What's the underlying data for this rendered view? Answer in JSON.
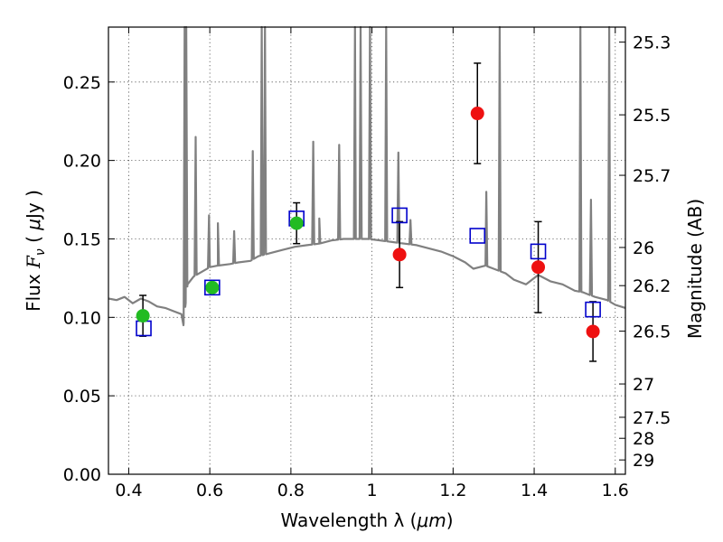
{
  "chart_data": {
    "type": "scatter",
    "xlabel_text": "Wavelength  λ (",
    "xlabel_unit": "μm",
    "xlabel_close": ")",
    "ylabel_text": "Flux  ",
    "ylabel_symbol": "F",
    "ylabel_subscript": "ν",
    "ylabel_unit_open": "  ( ",
    "ylabel_unit_mu": "μ",
    "ylabel_unit_rest": "Jy )",
    "y2label": "Magnitude (AB)",
    "xlim": [
      0.35,
      1.625
    ],
    "ylim": [
      0.0,
      0.285
    ],
    "grid": true,
    "x_ticks": [
      {
        "v": 0.4,
        "label": "0.4"
      },
      {
        "v": 0.6,
        "label": "0.6"
      },
      {
        "v": 0.8,
        "label": "0.8"
      },
      {
        "v": 1.0,
        "label": "1"
      },
      {
        "v": 1.2,
        "label": "1.2"
      },
      {
        "v": 1.4,
        "label": "1.4"
      },
      {
        "v": 1.6,
        "label": "1.6"
      }
    ],
    "y_ticks": [
      {
        "v": 0.0,
        "label": "0.00"
      },
      {
        "v": 0.05,
        "label": "0.05"
      },
      {
        "v": 0.1,
        "label": "0.10"
      },
      {
        "v": 0.15,
        "label": "0.15"
      },
      {
        "v": 0.2,
        "label": "0.20"
      },
      {
        "v": 0.25,
        "label": "0.25"
      }
    ],
    "mag_ticks": [
      {
        "label": "25.3",
        "v": 25.3
      },
      {
        "label": "25.5",
        "v": 25.5
      },
      {
        "label": "25.7",
        "v": 25.7
      },
      {
        "label": "26",
        "v": 26.0
      },
      {
        "label": "26.2",
        "v": 26.2
      },
      {
        "label": "26.5",
        "v": 26.5
      },
      {
        "label": "27",
        "v": 27.0
      },
      {
        "label": "27.5",
        "v": 27.5
      },
      {
        "label": "28",
        "v": 28.0
      },
      {
        "label": "29",
        "v": 29.0
      }
    ],
    "colors": {
      "sed": "#808080",
      "green": "#22bb22",
      "red": "#ee1111",
      "model": "#0000cc",
      "errorbar": "#000000"
    },
    "sed_continuum": [
      [
        0.35,
        0.112
      ],
      [
        0.37,
        0.111
      ],
      [
        0.39,
        0.113
      ],
      [
        0.41,
        0.109
      ],
      [
        0.43,
        0.112
      ],
      [
        0.45,
        0.11
      ],
      [
        0.47,
        0.107
      ],
      [
        0.49,
        0.106
      ],
      [
        0.51,
        0.104
      ],
      [
        0.53,
        0.102
      ],
      [
        0.535,
        0.095
      ],
      [
        0.545,
        0.121
      ],
      [
        0.56,
        0.126
      ],
      [
        0.58,
        0.129
      ],
      [
        0.6,
        0.132
      ],
      [
        0.62,
        0.133
      ],
      [
        0.65,
        0.134
      ],
      [
        0.67,
        0.135
      ],
      [
        0.7,
        0.136
      ],
      [
        0.72,
        0.139
      ],
      [
        0.75,
        0.141
      ],
      [
        0.78,
        0.143
      ],
      [
        0.81,
        0.145
      ],
      [
        0.84,
        0.146
      ],
      [
        0.87,
        0.147
      ],
      [
        0.9,
        0.149
      ],
      [
        0.93,
        0.15
      ],
      [
        0.96,
        0.15
      ],
      [
        0.99,
        0.15
      ],
      [
        1.02,
        0.149
      ],
      [
        1.05,
        0.148
      ],
      [
        1.08,
        0.147
      ],
      [
        1.11,
        0.146
      ],
      [
        1.14,
        0.144
      ],
      [
        1.17,
        0.142
      ],
      [
        1.2,
        0.139
      ],
      [
        1.23,
        0.135
      ],
      [
        1.25,
        0.131
      ],
      [
        1.28,
        0.133
      ],
      [
        1.3,
        0.131
      ],
      [
        1.33,
        0.128
      ],
      [
        1.35,
        0.124
      ],
      [
        1.38,
        0.121
      ],
      [
        1.41,
        0.127
      ],
      [
        1.44,
        0.123
      ],
      [
        1.47,
        0.121
      ],
      [
        1.5,
        0.117
      ],
      [
        1.52,
        0.116
      ],
      [
        1.55,
        0.113
      ],
      [
        1.58,
        0.111
      ],
      [
        1.6,
        0.108
      ],
      [
        1.625,
        0.106
      ]
    ],
    "sed_lines": [
      {
        "x": 0.538,
        "peak": 0.285
      },
      {
        "x": 0.542,
        "peak": 0.285
      },
      {
        "x": 0.565,
        "peak": 0.215
      },
      {
        "x": 0.598,
        "peak": 0.165
      },
      {
        "x": 0.62,
        "peak": 0.16
      },
      {
        "x": 0.66,
        "peak": 0.155
      },
      {
        "x": 0.706,
        "peak": 0.206
      },
      {
        "x": 0.728,
        "peak": 0.285
      },
      {
        "x": 0.736,
        "peak": 0.285
      },
      {
        "x": 0.855,
        "peak": 0.212
      },
      {
        "x": 0.87,
        "peak": 0.163
      },
      {
        "x": 0.919,
        "peak": 0.21
      },
      {
        "x": 0.958,
        "peak": 0.285
      },
      {
        "x": 0.972,
        "peak": 0.285
      },
      {
        "x": 0.995,
        "peak": 0.285
      },
      {
        "x": 1.035,
        "peak": 0.285
      },
      {
        "x": 1.065,
        "peak": 0.205
      },
      {
        "x": 1.095,
        "peak": 0.162
      },
      {
        "x": 1.282,
        "peak": 0.18
      },
      {
        "x": 1.315,
        "peak": 0.285
      },
      {
        "x": 1.514,
        "peak": 0.285
      },
      {
        "x": 1.54,
        "peak": 0.175
      },
      {
        "x": 1.585,
        "peak": 0.285
      }
    ],
    "observed_green": [
      {
        "x": 0.435,
        "y": 0.101,
        "err": 0.013
      },
      {
        "x": 0.606,
        "y": 0.119,
        "err": 0.0
      },
      {
        "x": 0.814,
        "y": 0.16,
        "err": 0.013
      }
    ],
    "observed_red": [
      {
        "x": 1.068,
        "y": 0.14,
        "err": 0.021
      },
      {
        "x": 1.26,
        "y": 0.23,
        "err": 0.032
      },
      {
        "x": 1.41,
        "y": 0.132,
        "err": 0.029
      },
      {
        "x": 1.545,
        "y": 0.091,
        "err": 0.019
      }
    ],
    "model_squares": [
      {
        "x": 0.437,
        "y": 0.093
      },
      {
        "x": 0.606,
        "y": 0.119
      },
      {
        "x": 0.814,
        "y": 0.163
      },
      {
        "x": 1.068,
        "y": 0.165
      },
      {
        "x": 1.26,
        "y": 0.152
      },
      {
        "x": 1.41,
        "y": 0.142
      },
      {
        "x": 1.545,
        "y": 0.105
      }
    ]
  }
}
